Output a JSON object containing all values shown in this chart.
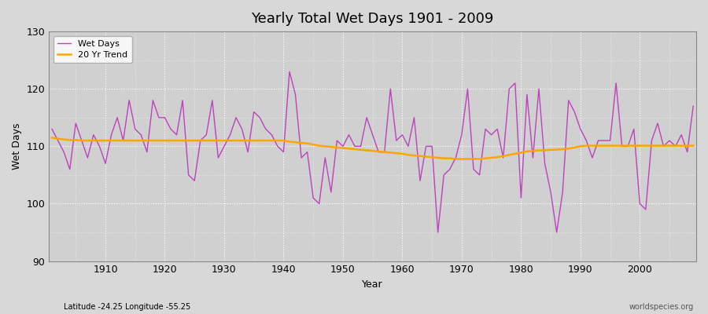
{
  "title": "Yearly Total Wet Days 1901 - 2009",
  "xlabel": "Year",
  "ylabel": "Wet Days",
  "footnote_left": "Latitude -24.25 Longitude -55.25",
  "footnote_right": "worldspecies.org",
  "ylim": [
    90,
    130
  ],
  "yticks": [
    90,
    100,
    110,
    120,
    130
  ],
  "bg_color": "#d8d8d8",
  "plot_bg_color": "#d0d0d0",
  "wet_days_color": "#bb44bb",
  "trend_color": "#ffa500",
  "years": [
    1901,
    1902,
    1903,
    1904,
    1905,
    1906,
    1907,
    1908,
    1909,
    1910,
    1911,
    1912,
    1913,
    1914,
    1915,
    1916,
    1917,
    1918,
    1919,
    1920,
    1921,
    1922,
    1923,
    1924,
    1925,
    1926,
    1927,
    1928,
    1929,
    1930,
    1931,
    1932,
    1933,
    1934,
    1935,
    1936,
    1937,
    1938,
    1939,
    1940,
    1941,
    1942,
    1943,
    1944,
    1945,
    1946,
    1947,
    1948,
    1949,
    1950,
    1951,
    1952,
    1953,
    1954,
    1955,
    1956,
    1957,
    1958,
    1959,
    1960,
    1961,
    1962,
    1963,
    1964,
    1965,
    1966,
    1967,
    1968,
    1969,
    1970,
    1971,
    1972,
    1973,
    1974,
    1975,
    1976,
    1977,
    1978,
    1979,
    1980,
    1981,
    1982,
    1983,
    1984,
    1985,
    1986,
    1987,
    1988,
    1989,
    1990,
    1991,
    1992,
    1993,
    1994,
    1995,
    1996,
    1997,
    1998,
    1999,
    2000,
    2001,
    2002,
    2003,
    2004,
    2005,
    2006,
    2007,
    2008,
    2009
  ],
  "wet_days": [
    113,
    111,
    109,
    106,
    114,
    111,
    108,
    112,
    110,
    107,
    112,
    115,
    111,
    118,
    113,
    112,
    109,
    118,
    115,
    115,
    113,
    112,
    118,
    105,
    104,
    111,
    112,
    118,
    108,
    110,
    112,
    115,
    113,
    109,
    116,
    115,
    113,
    112,
    110,
    109,
    123,
    119,
    108,
    109,
    101,
    100,
    108,
    102,
    111,
    110,
    112,
    110,
    110,
    115,
    112,
    109,
    109,
    120,
    111,
    112,
    110,
    115,
    104,
    110,
    110,
    95,
    105,
    106,
    108,
    112,
    120,
    106,
    105,
    113,
    112,
    113,
    108,
    120,
    121,
    101,
    119,
    108,
    120,
    107,
    102,
    95,
    102,
    118,
    116,
    113,
    111,
    108,
    111,
    111,
    111,
    121,
    110,
    110,
    113,
    100,
    99,
    111,
    114,
    110,
    111,
    110,
    112,
    109,
    117
  ],
  "trend": [
    111.5,
    111.3,
    111.2,
    111.1,
    111.1,
    111.0,
    111.0,
    111.0,
    111.0,
    111.0,
    111.0,
    111.0,
    111.0,
    111.0,
    111.0,
    111.0,
    111.0,
    111.0,
    111.0,
    111.0,
    111.0,
    111.0,
    111.0,
    111.0,
    111.0,
    111.0,
    111.0,
    111.0,
    111.0,
    111.0,
    111.0,
    111.0,
    111.0,
    111.0,
    111.0,
    111.0,
    111.0,
    111.0,
    111.0,
    111.0,
    110.8,
    110.7,
    110.6,
    110.5,
    110.3,
    110.1,
    110.0,
    109.9,
    109.8,
    109.7,
    109.6,
    109.5,
    109.4,
    109.3,
    109.2,
    109.1,
    109.0,
    108.9,
    108.8,
    108.7,
    108.5,
    108.4,
    108.3,
    108.2,
    108.1,
    108.0,
    107.9,
    107.9,
    107.8,
    107.8,
    107.8,
    107.8,
    107.8,
    107.9,
    108.0,
    108.1,
    108.3,
    108.5,
    108.7,
    108.9,
    109.1,
    109.2,
    109.3,
    109.3,
    109.4,
    109.4,
    109.5,
    109.6,
    109.8,
    110.0,
    110.1,
    110.1,
    110.1,
    110.1,
    110.1,
    110.1,
    110.1,
    110.1,
    110.1,
    110.1,
    110.1,
    110.1,
    110.1,
    110.1,
    110.1,
    110.1,
    110.1,
    110.1,
    110.1
  ],
  "xticks": [
    1910,
    1920,
    1930,
    1940,
    1950,
    1960,
    1970,
    1980,
    1990,
    2000
  ]
}
